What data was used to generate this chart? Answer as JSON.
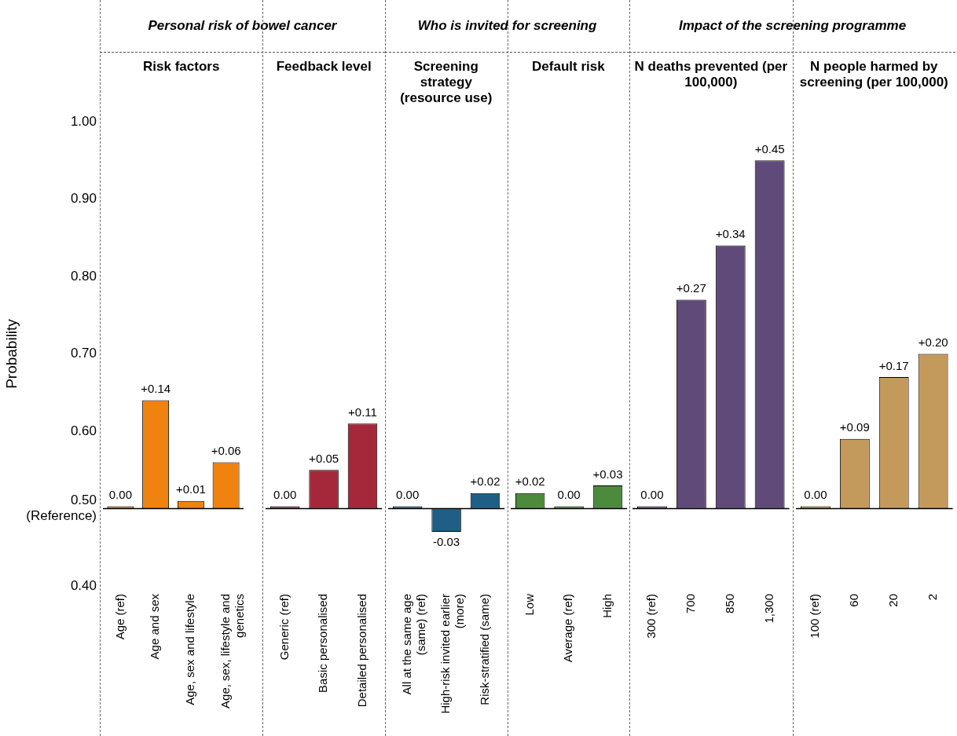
{
  "chart_data": [
    {
      "type": "bar",
      "title": "Personal risk of bowel cancer",
      "subtitle": "Risk factors",
      "ylabel": "Probability",
      "categories": [
        "Age (ref)",
        "Age and sex",
        "Age, sex and lifestyle",
        "Age, sex, lifestyle and genetics"
      ],
      "values": [
        0,
        0.14,
        0.01,
        0.06
      ],
      "base": [
        0.5,
        0.5,
        0.5,
        0.5
      ],
      "colors": [
        "#f0820f",
        "#f0820f",
        "#f0820f",
        "#f0820f"
      ],
      "value_labels": [
        "0.00",
        "+0.14",
        "+0.01",
        "+0.06"
      ],
      "ylim": [
        0.4,
        1.0
      ],
      "yticks": [
        {
          "value": 0.4,
          "label": "0.40"
        },
        {
          "value": 0.5,
          "label": "0.50\n(Reference)"
        },
        {
          "value": 0.6,
          "label": "0.60"
        },
        {
          "value": 0.7,
          "label": "0.70"
        },
        {
          "value": 0.8,
          "label": "0.80"
        },
        {
          "value": 0.9,
          "label": "0.90"
        },
        {
          "value": 1.0,
          "label": "1.00"
        }
      ],
      "ref_lines": [
        {
          "axis": "y",
          "value": 0.5,
          "color": "#000000"
        }
      ]
    },
    {
      "type": "bar",
      "subtitle": "Feedback level",
      "categories": [
        "Generic (ref)",
        "Basic personalised",
        "Detailed personalised"
      ],
      "values": [
        0,
        0.05,
        0.11
      ],
      "base": [
        0.5,
        0.5,
        0.5
      ],
      "colors": [
        "#a4283a",
        "#a4283a",
        "#a4283a"
      ],
      "value_labels": [
        "0.00",
        "+0.05",
        "+0.11"
      ],
      "ylim": [
        0.4,
        1.0
      ],
      "tick_labels": "x",
      "ref_lines": [
        {
          "axis": "y",
          "value": 0.5,
          "color": "#000000"
        }
      ]
    },
    {
      "type": "bar",
      "title": "Who is invited for screening",
      "subtitle": "Screening strategy (resource use)",
      "categories": [
        "All at the same age (same) (ref)",
        "High-risk invited earlier (more)",
        "Risk-stratified (same)"
      ],
      "values": [
        0,
        -0.03,
        0.02
      ],
      "base": [
        0.5,
        0.5,
        0.5
      ],
      "colors": [
        "#1f5f86",
        "#1f5f86",
        "#1f5f86"
      ],
      "value_labels": [
        "0.00",
        "-0.03",
        "+0.02"
      ],
      "ylim": [
        0.4,
        1.0
      ],
      "tick_labels": "x",
      "ref_lines": [
        {
          "axis": "y",
          "value": 0.5,
          "color": "#000000"
        }
      ]
    },
    {
      "type": "bar",
      "subtitle": "Default risk",
      "categories": [
        "Low",
        "Average (ref)",
        "High"
      ],
      "values": [
        0.02,
        0,
        0.03
      ],
      "base": [
        0.5,
        0.5,
        0.5
      ],
      "colors": [
        "#4b8b3b",
        "#4b8b3b",
        "#4b8b3b"
      ],
      "value_labels": [
        "+0.02",
        "0.00",
        "+0.03"
      ],
      "ylim": [
        0.4,
        1.0
      ],
      "tick_labels": "x",
      "ref_lines": [
        {
          "axis": "y",
          "value": 0.5,
          "color": "#000000"
        }
      ]
    },
    {
      "type": "bar",
      "title": "Impact of the screening programme",
      "subtitle": "N deaths prevented (per 100,000)",
      "categories": [
        "300 (ref)",
        "700",
        "850",
        "1,300"
      ],
      "values": [
        0,
        0.27,
        0.34,
        0.45
      ],
      "base": [
        0.5,
        0.5,
        0.5,
        0.5
      ],
      "colors": [
        "#5f4a7a",
        "#5f4a7a",
        "#5f4a7a",
        "#5f4a7a"
      ],
      "value_labels": [
        "0.00",
        "+0.27",
        "+0.34",
        "+0.45"
      ],
      "ylim": [
        0.4,
        1.0
      ],
      "tick_labels": "x",
      "ref_lines": [
        {
          "axis": "y",
          "value": 0.5,
          "color": "#000000"
        }
      ]
    },
    {
      "type": "bar",
      "subtitle": "N people harmed by screening (per 100,000)",
      "categories": [
        "100 (ref)",
        "60",
        "20",
        "2"
      ],
      "values": [
        0,
        0.09,
        0.17,
        0.2
      ],
      "base": [
        0.5,
        0.5,
        0.5,
        0.5
      ],
      "colors": [
        "#c49a5c",
        "#c49a5c",
        "#c49a5c",
        "#c49a5c"
      ],
      "value_labels": [
        "0.00",
        "+0.09",
        "+0.17",
        "+0.20"
      ],
      "ylim": [
        0.4,
        1.0
      ],
      "tick_labels": "x",
      "ref_lines": [
        {
          "axis": "y",
          "value": 0.5,
          "color": "#000000"
        }
      ]
    }
  ]
}
